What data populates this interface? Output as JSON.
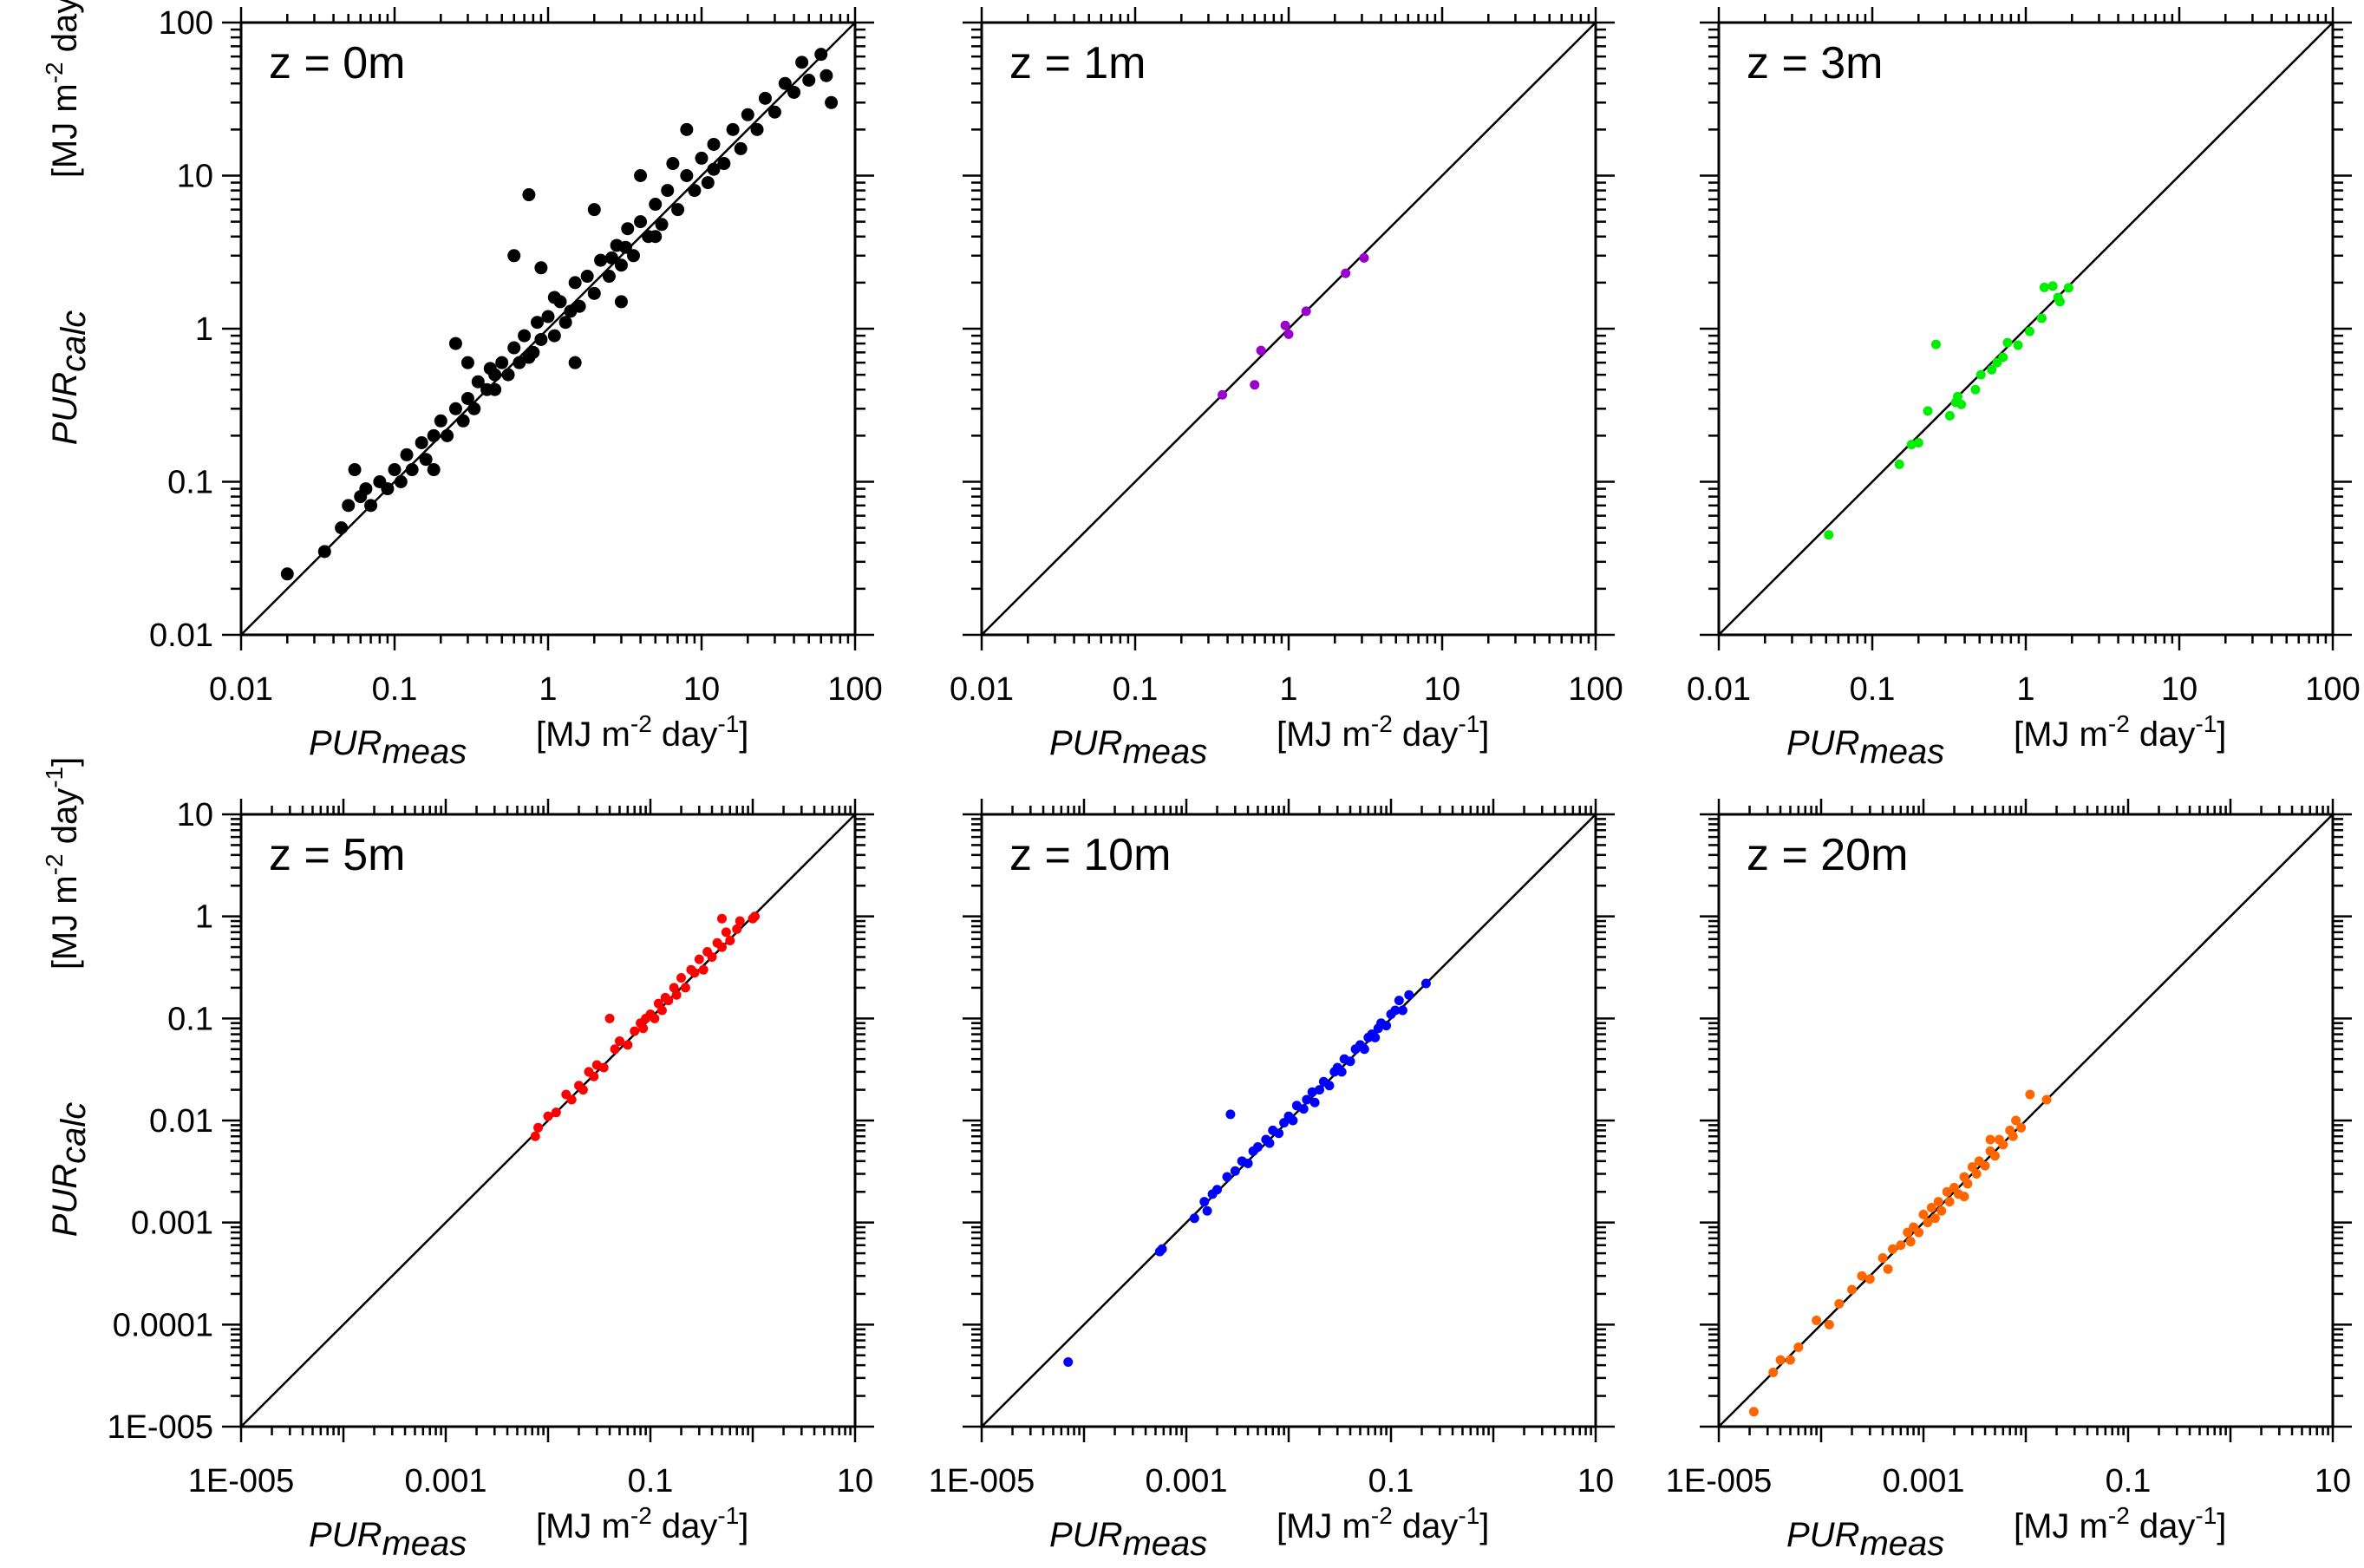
{
  "xlabel": {
    "main": "PUR",
    "sub": "meas",
    "units_a": "[MJ m",
    "exp1": "-2",
    "units_b": " day",
    "exp2": "-1",
    "units_c": "]"
  },
  "ylabel": {
    "main": "PUR",
    "sub": "calc",
    "units_a": "[MJ m",
    "exp1": "-2",
    "units_b": " day",
    "exp2": "-1",
    "units_c": "]"
  },
  "chart_data": [
    {
      "type": "scatter",
      "title": "z = 0m",
      "color": "#000000",
      "xscale": "log",
      "yscale": "log",
      "xlim": [
        0.01,
        100
      ],
      "ylim": [
        0.01,
        100
      ],
      "xticks": [
        {
          "v": 0.01,
          "t": "0.01"
        },
        {
          "v": 0.1,
          "t": "0.1"
        },
        {
          "v": 1,
          "t": "1"
        },
        {
          "v": 10,
          "t": "10"
        },
        {
          "v": 100,
          "t": "100"
        }
      ],
      "yticks": [
        {
          "v": 0.01,
          "t": "0.01"
        },
        {
          "v": 0.1,
          "t": "0.1"
        },
        {
          "v": 1,
          "t": "1"
        },
        {
          "v": 10,
          "t": "10"
        },
        {
          "v": 100,
          "t": "100"
        }
      ],
      "reference_line": "1:1",
      "points": [
        [
          0.02,
          0.025
        ],
        [
          0.035,
          0.035
        ],
        [
          0.045,
          0.05
        ],
        [
          0.05,
          0.07
        ],
        [
          0.055,
          0.12
        ],
        [
          0.06,
          0.08
        ],
        [
          0.065,
          0.09
        ],
        [
          0.07,
          0.07
        ],
        [
          0.08,
          0.1
        ],
        [
          0.09,
          0.09
        ],
        [
          0.1,
          0.12
        ],
        [
          0.11,
          0.1
        ],
        [
          0.12,
          0.15
        ],
        [
          0.13,
          0.12
        ],
        [
          0.15,
          0.18
        ],
        [
          0.16,
          0.14
        ],
        [
          0.18,
          0.2
        ],
        [
          0.2,
          0.25
        ],
        [
          0.22,
          0.2
        ],
        [
          0.25,
          0.3
        ],
        [
          0.28,
          0.25
        ],
        [
          0.3,
          0.35
        ],
        [
          0.33,
          0.3
        ],
        [
          0.35,
          0.45
        ],
        [
          0.4,
          0.4
        ],
        [
          0.42,
          0.55
        ],
        [
          0.45,
          0.4
        ],
        [
          0.5,
          0.6
        ],
        [
          0.55,
          0.5
        ],
        [
          0.6,
          0.75
        ],
        [
          0.65,
          0.6
        ],
        [
          0.7,
          0.9
        ],
        [
          0.75,
          7.5
        ],
        [
          0.8,
          0.7
        ],
        [
          0.85,
          1.1
        ],
        [
          0.9,
          0.85
        ],
        [
          1,
          1.2
        ],
        [
          1.1,
          0.9
        ],
        [
          1.2,
          1.5
        ],
        [
          1.3,
          1.1
        ],
        [
          1.5,
          2
        ],
        [
          1.6,
          1.4
        ],
        [
          1.8,
          2.2
        ],
        [
          2,
          1.7
        ],
        [
          2.2,
          2.8
        ],
        [
          2.5,
          2.2
        ],
        [
          2.8,
          3.5
        ],
        [
          3,
          2.6
        ],
        [
          3.3,
          4.5
        ],
        [
          3.6,
          3
        ],
        [
          4,
          5
        ],
        [
          4.5,
          4
        ],
        [
          5,
          6.5
        ],
        [
          5.5,
          4.8
        ],
        [
          6,
          8
        ],
        [
          6.5,
          12
        ],
        [
          7,
          6
        ],
        [
          8,
          10
        ],
        [
          9,
          8
        ],
        [
          10,
          13
        ],
        [
          11,
          9
        ],
        [
          12,
          16
        ],
        [
          14,
          12
        ],
        [
          16,
          20
        ],
        [
          18,
          15
        ],
        [
          20,
          25
        ],
        [
          23,
          20
        ],
        [
          26,
          32
        ],
        [
          30,
          26
        ],
        [
          35,
          40
        ],
        [
          40,
          35
        ],
        [
          45,
          55
        ],
        [
          50,
          42
        ],
        [
          60,
          62
        ],
        [
          65,
          45
        ],
        [
          70,
          30
        ],
        [
          0.3,
          0.6
        ],
        [
          0.25,
          0.8
        ],
        [
          0.9,
          2.5
        ],
        [
          0.6,
          3
        ],
        [
          2,
          6
        ],
        [
          4,
          10
        ],
        [
          1.5,
          0.6
        ],
        [
          3,
          1.5
        ],
        [
          0.18,
          0.12
        ],
        [
          8,
          20
        ],
        [
          1.4,
          1.3
        ],
        [
          2.6,
          2.9
        ],
        [
          0.75,
          0.65
        ],
        [
          5,
          4
        ],
        [
          12,
          11
        ],
        [
          0.45,
          0.5
        ],
        [
          1.1,
          1.6
        ],
        [
          3.2,
          3.4
        ]
      ]
    },
    {
      "type": "scatter",
      "title": "z = 1m",
      "color": "#9900cc",
      "xscale": "log",
      "yscale": "log",
      "xlim": [
        0.01,
        100
      ],
      "ylim": [
        0.01,
        100
      ],
      "xticks": [
        {
          "v": 0.01,
          "t": "0.01"
        },
        {
          "v": 0.1,
          "t": "0.1"
        },
        {
          "v": 1,
          "t": "1"
        },
        {
          "v": 10,
          "t": "10"
        },
        {
          "v": 100,
          "t": "100"
        }
      ],
      "yticks": [],
      "reference_line": "1:1",
      "points": [
        [
          0.37,
          0.37
        ],
        [
          0.6,
          0.43
        ],
        [
          0.66,
          0.72
        ],
        [
          0.95,
          1.05
        ],
        [
          1.0,
          0.92
        ],
        [
          1.3,
          1.3
        ],
        [
          2.35,
          2.3
        ],
        [
          3.1,
          2.9
        ]
      ]
    },
    {
      "type": "scatter",
      "title": "z = 3m",
      "color": "#00ee00",
      "xscale": "log",
      "yscale": "log",
      "xlim": [
        0.01,
        100
      ],
      "ylim": [
        0.01,
        100
      ],
      "xticks": [
        {
          "v": 0.01,
          "t": "0.01"
        },
        {
          "v": 0.1,
          "t": "0.1"
        },
        {
          "v": 1,
          "t": "1"
        },
        {
          "v": 10,
          "t": "10"
        },
        {
          "v": 100,
          "t": "100"
        }
      ],
      "yticks": [],
      "reference_line": "1:1",
      "points": [
        [
          0.052,
          0.045
        ],
        [
          0.15,
          0.13
        ],
        [
          0.18,
          0.175
        ],
        [
          0.23,
          0.29
        ],
        [
          0.32,
          0.27
        ],
        [
          0.26,
          0.79
        ],
        [
          0.35,
          0.33
        ],
        [
          0.38,
          0.32
        ],
        [
          0.47,
          0.4
        ],
        [
          0.51,
          0.5
        ],
        [
          0.6,
          0.54
        ],
        [
          0.65,
          0.6
        ],
        [
          0.71,
          0.65
        ],
        [
          0.76,
          0.81
        ],
        [
          0.89,
          0.78
        ],
        [
          1.06,
          0.96
        ],
        [
          1.27,
          1.17
        ],
        [
          1.32,
          1.86
        ],
        [
          1.5,
          1.9
        ],
        [
          1.67,
          1.5
        ],
        [
          1.9,
          1.85
        ],
        [
          1.62,
          1.6
        ],
        [
          0.2,
          0.18
        ],
        [
          0.36,
          0.36
        ]
      ]
    },
    {
      "type": "scatter",
      "title": "z = 5m",
      "color": "#ff0000",
      "xscale": "log",
      "yscale": "log",
      "xlim": [
        1e-05,
        10
      ],
      "ylim": [
        1e-05,
        10
      ],
      "xticks": [
        {
          "v": 1e-05,
          "t": "1E-005"
        },
        {
          "v": 0.001,
          "t": "0.001"
        },
        {
          "v": 0.1,
          "t": "0.1"
        },
        {
          "v": 10,
          "t": "10"
        }
      ],
      "yticks": [
        {
          "v": 1e-05,
          "t": "1E-005"
        },
        {
          "v": 0.0001,
          "t": "0.0001"
        },
        {
          "v": 0.001,
          "t": "0.001"
        },
        {
          "v": 0.01,
          "t": "0.01"
        },
        {
          "v": 0.1,
          "t": "0.1"
        },
        {
          "v": 1,
          "t": "1"
        },
        {
          "v": 10,
          "t": "10"
        }
      ],
      "reference_line": "1:1",
      "points": [
        [
          0.0075,
          0.007
        ],
        [
          0.008,
          0.0085
        ],
        [
          0.01,
          0.011
        ],
        [
          0.012,
          0.012
        ],
        [
          0.015,
          0.018
        ],
        [
          0.017,
          0.016
        ],
        [
          0.02,
          0.022
        ],
        [
          0.022,
          0.02
        ],
        [
          0.025,
          0.03
        ],
        [
          0.028,
          0.027
        ],
        [
          0.03,
          0.035
        ],
        [
          0.035,
          0.033
        ],
        [
          0.04,
          0.1
        ],
        [
          0.045,
          0.05
        ],
        [
          0.05,
          0.06
        ],
        [
          0.06,
          0.055
        ],
        [
          0.07,
          0.075
        ],
        [
          0.08,
          0.09
        ],
        [
          0.085,
          0.08
        ],
        [
          0.09,
          0.1
        ],
        [
          0.1,
          0.11
        ],
        [
          0.11,
          0.1
        ],
        [
          0.12,
          0.14
        ],
        [
          0.13,
          0.12
        ],
        [
          0.14,
          0.16
        ],
        [
          0.15,
          0.15
        ],
        [
          0.17,
          0.2
        ],
        [
          0.18,
          0.17
        ],
        [
          0.2,
          0.25
        ],
        [
          0.22,
          0.2
        ],
        [
          0.25,
          0.3
        ],
        [
          0.27,
          0.28
        ],
        [
          0.3,
          0.38
        ],
        [
          0.33,
          0.3
        ],
        [
          0.36,
          0.45
        ],
        [
          0.4,
          0.4
        ],
        [
          0.45,
          0.55
        ],
        [
          0.5,
          0.5
        ],
        [
          0.55,
          0.7
        ],
        [
          0.6,
          0.58
        ],
        [
          0.7,
          0.75
        ],
        [
          0.75,
          0.9
        ],
        [
          0.5,
          0.95
        ],
        [
          1,
          0.95
        ],
        [
          1.05,
          1.0
        ]
      ]
    },
    {
      "type": "scatter",
      "title": "z = 10m",
      "color": "#0000ff",
      "xscale": "log",
      "yscale": "log",
      "xlim": [
        1e-05,
        10
      ],
      "ylim": [
        1e-05,
        10
      ],
      "xticks": [
        {
          "v": 1e-05,
          "t": "1E-005"
        },
        {
          "v": 0.001,
          "t": "0.001"
        },
        {
          "v": 0.1,
          "t": "0.1"
        },
        {
          "v": 10,
          "t": "10"
        }
      ],
      "yticks": [],
      "reference_line": "1:1",
      "points": [
        [
          7e-05,
          4.3e-05
        ],
        [
          0.00055,
          0.00052
        ],
        [
          0.00058,
          0.00055
        ],
        [
          0.0012,
          0.0011
        ],
        [
          0.0015,
          0.0016
        ],
        [
          0.0016,
          0.0013
        ],
        [
          0.0018,
          0.0019
        ],
        [
          0.002,
          0.0021
        ],
        [
          0.0025,
          0.0028
        ],
        [
          0.0027,
          0.0115
        ],
        [
          0.003,
          0.0032
        ],
        [
          0.0035,
          0.004
        ],
        [
          0.004,
          0.0038
        ],
        [
          0.0045,
          0.005
        ],
        [
          0.005,
          0.0055
        ],
        [
          0.006,
          0.0065
        ],
        [
          0.0065,
          0.006
        ],
        [
          0.007,
          0.008
        ],
        [
          0.008,
          0.0075
        ],
        [
          0.009,
          0.0095
        ],
        [
          0.01,
          0.011
        ],
        [
          0.011,
          0.01
        ],
        [
          0.012,
          0.014
        ],
        [
          0.014,
          0.013
        ],
        [
          0.015,
          0.016
        ],
        [
          0.017,
          0.019
        ],
        [
          0.02,
          0.02
        ],
        [
          0.022,
          0.024
        ],
        [
          0.025,
          0.022
        ],
        [
          0.028,
          0.03
        ],
        [
          0.03,
          0.033
        ],
        [
          0.033,
          0.03
        ],
        [
          0.035,
          0.04
        ],
        [
          0.04,
          0.038
        ],
        [
          0.045,
          0.05
        ],
        [
          0.05,
          0.055
        ],
        [
          0.055,
          0.05
        ],
        [
          0.06,
          0.065
        ],
        [
          0.065,
          0.07
        ],
        [
          0.07,
          0.065
        ],
        [
          0.075,
          0.08
        ],
        [
          0.08,
          0.09
        ],
        [
          0.09,
          0.085
        ],
        [
          0.1,
          0.11
        ],
        [
          0.11,
          0.12
        ],
        [
          0.12,
          0.15
        ],
        [
          0.13,
          0.12
        ],
        [
          0.15,
          0.17
        ],
        [
          0.22,
          0.22
        ],
        [
          0.018,
          0.015
        ]
      ]
    },
    {
      "type": "scatter",
      "title": "z = 20m",
      "color": "#ff6600",
      "xscale": "log",
      "yscale": "log",
      "xlim": [
        1e-05,
        10
      ],
      "ylim": [
        1e-05,
        10
      ],
      "xticks": [
        {
          "v": 1e-05,
          "t": "1E-005"
        },
        {
          "v": 0.001,
          "t": "0.001"
        },
        {
          "v": 0.1,
          "t": "0.1"
        },
        {
          "v": 10,
          "t": "10"
        }
      ],
      "yticks": [],
      "reference_line": "1:1",
      "points": [
        [
          2.2e-05,
          1.4e-05
        ],
        [
          3.4e-05,
          3.4e-05
        ],
        [
          4e-05,
          4.5e-05
        ],
        [
          5e-05,
          4.5e-05
        ],
        [
          6e-05,
          6e-05
        ],
        [
          9e-05,
          0.00011
        ],
        [
          0.00012,
          0.0001
        ],
        [
          0.00015,
          0.00016
        ],
        [
          0.0002,
          0.00022
        ],
        [
          0.00025,
          0.0003
        ],
        [
          0.0003,
          0.00028
        ],
        [
          0.0004,
          0.00045
        ],
        [
          0.00045,
          0.00035
        ],
        [
          0.0005,
          0.00055
        ],
        [
          0.0006,
          0.0006
        ],
        [
          0.0007,
          0.0008
        ],
        [
          0.00075,
          0.00065
        ],
        [
          0.0008,
          0.0009
        ],
        [
          0.0009,
          0.0008
        ],
        [
          0.001,
          0.0012
        ],
        [
          0.0011,
          0.001
        ],
        [
          0.0012,
          0.0014
        ],
        [
          0.0013,
          0.0011
        ],
        [
          0.0014,
          0.0016
        ],
        [
          0.0015,
          0.0013
        ],
        [
          0.0017,
          0.002
        ],
        [
          0.0018,
          0.0016
        ],
        [
          0.002,
          0.0022
        ],
        [
          0.0022,
          0.0019
        ],
        [
          0.0025,
          0.0028
        ],
        [
          0.0027,
          0.0024
        ],
        [
          0.003,
          0.0035
        ],
        [
          0.0033,
          0.003
        ],
        [
          0.0035,
          0.004
        ],
        [
          0.004,
          0.0036
        ],
        [
          0.0045,
          0.005
        ],
        [
          0.005,
          0.0045
        ],
        [
          0.0055,
          0.0065
        ],
        [
          0.006,
          0.0058
        ],
        [
          0.007,
          0.008
        ],
        [
          0.0075,
          0.007
        ],
        [
          0.008,
          0.01
        ],
        [
          0.009,
          0.0085
        ],
        [
          0.011,
          0.018
        ],
        [
          0.016,
          0.016
        ],
        [
          0.0045,
          0.0065
        ],
        [
          0.0025,
          0.0018
        ]
      ]
    }
  ]
}
